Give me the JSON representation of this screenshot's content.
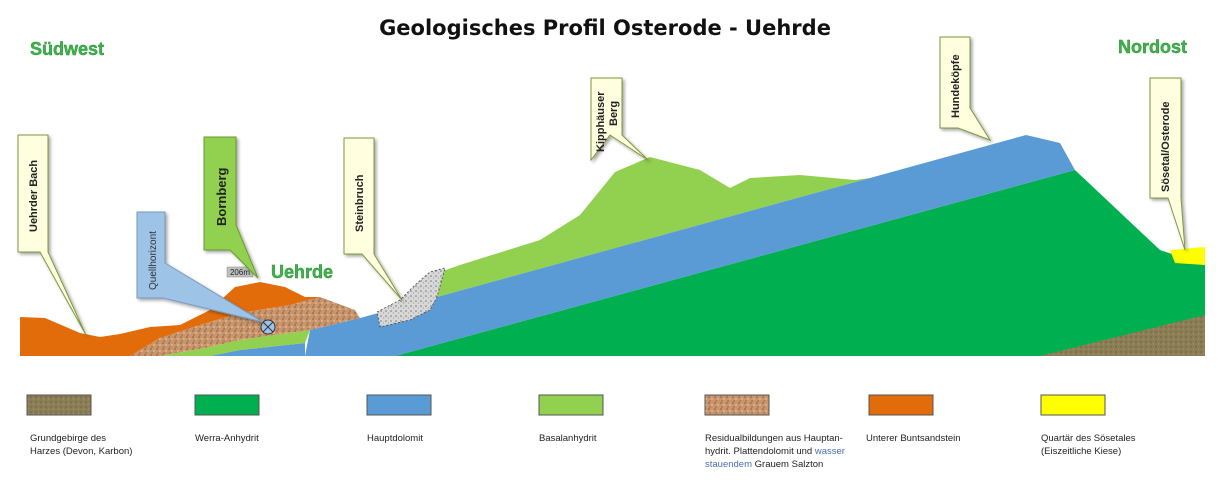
{
  "title": "Geologisches Profil Osterode - Uehrde",
  "directions": {
    "left": "Südwest",
    "right": "Nordost"
  },
  "place_label": "Uehrde",
  "elevation_tag": "206m",
  "callouts": {
    "uehrder_bach": "Uehrder Bach",
    "quellhorizont": "Quellhorizont",
    "bornberg": "Bornberg",
    "steinbruch": "Steinbruch",
    "kipphaeuser_line1": "Kipphäuser",
    "kipphaeuser_line2": "Berg",
    "hundekoepfe": "Hundeköpfe",
    "soesetal": "Sösetal/Osterode"
  },
  "colors": {
    "grundgebirge": "#8b7d56",
    "werra_anhydrit": "#00b050",
    "hauptdolomit": "#5b9bd5",
    "basalanhydrit": "#92d050",
    "residual": "#c8956c",
    "buntsandstein": "#e36c0a",
    "quartaer": "#ffff00"
  },
  "legend": [
    {
      "key": "grundgebirge",
      "lines": [
        "Grundgebirge des",
        "Harzes (Devon, Karbon)"
      ]
    },
    {
      "key": "werra_anhydrit",
      "lines": [
        "Werra-Anhydrit"
      ]
    },
    {
      "key": "hauptdolomit",
      "lines": [
        "Hauptdolomit"
      ]
    },
    {
      "key": "basalanhydrit",
      "lines": [
        "Basalanhydrit"
      ]
    },
    {
      "key": "residual",
      "lines": [
        "Residualbildungen aus Hauptan-",
        "hydrit. Plattendolomit und ",
        "stauendem",
        " Grauem Salzton"
      ],
      "blue_part1": "wasser"
    },
    {
      "key": "buntsandstein",
      "lines": [
        "Unterer Buntsandstein"
      ]
    },
    {
      "key": "quartaer",
      "lines": [
        "Quartär des Sösetales",
        "(Eiszeitliche Kiese)"
      ]
    }
  ]
}
